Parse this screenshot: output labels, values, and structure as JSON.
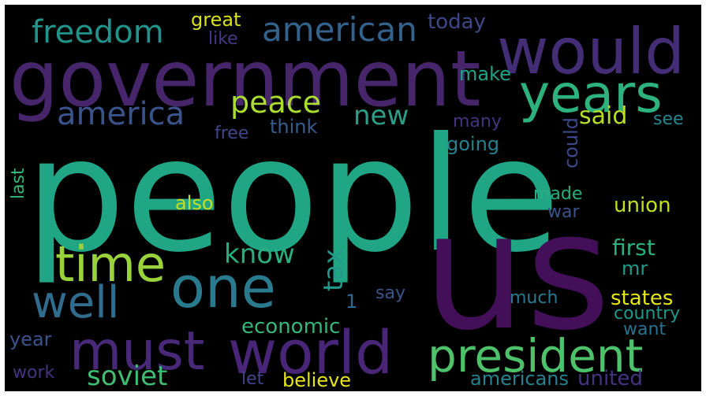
{
  "words": [
    {
      "text": "people",
      "color": "#21a685"
    },
    {
      "text": "us",
      "color": "#440f59"
    },
    {
      "text": "government",
      "color": "#46256b"
    },
    {
      "text": "would",
      "color": "#432d74"
    },
    {
      "text": "years",
      "color": "#2db27d"
    },
    {
      "text": "president",
      "color": "#4ec16b"
    },
    {
      "text": "world",
      "color": "#482576"
    },
    {
      "text": "one",
      "color": "#2a7a8e"
    },
    {
      "text": "must",
      "color": "#482978"
    },
    {
      "text": "time",
      "color": "#99d23d"
    },
    {
      "text": "well",
      "color": "#2f6c8e"
    },
    {
      "text": "american",
      "color": "#33628d"
    },
    {
      "text": "freedom",
      "color": "#22938a"
    },
    {
      "text": "america",
      "color": "#3a538b"
    },
    {
      "text": "peace",
      "color": "#aadc32"
    },
    {
      "text": "new",
      "color": "#2c9e86"
    },
    {
      "text": "soviet",
      "color": "#40bd72"
    },
    {
      "text": "know",
      "color": "#28ae80"
    },
    {
      "text": "tax",
      "color": "#23998a"
    },
    {
      "text": "said",
      "color": "#b5de2b"
    },
    {
      "text": "first",
      "color": "#2ab07f"
    },
    {
      "text": "union",
      "color": "#c2df23"
    },
    {
      "text": "states",
      "color": "#e4e51a"
    },
    {
      "text": "economic",
      "color": "#35b779"
    },
    {
      "text": "great",
      "color": "#d8e219"
    },
    {
      "text": "today",
      "color": "#3f4788"
    },
    {
      "text": "like",
      "color": "#443983"
    },
    {
      "text": "make",
      "color": "#20a386"
    },
    {
      "text": "think",
      "color": "#365c8d"
    },
    {
      "text": "free",
      "color": "#404688"
    },
    {
      "text": "going",
      "color": "#27808e"
    },
    {
      "text": "could",
      "color": "#3e4989"
    },
    {
      "text": "many",
      "color": "#45337d"
    },
    {
      "text": "see",
      "color": "#24868e"
    },
    {
      "text": "last",
      "color": "#35b779"
    },
    {
      "text": "also",
      "color": "#c2df23"
    },
    {
      "text": "made",
      "color": "#28ae80"
    },
    {
      "text": "war",
      "color": "#3b528b"
    },
    {
      "text": "mr",
      "color": "#1f9a8a"
    },
    {
      "text": "1",
      "color": "#31688e"
    },
    {
      "text": "say",
      "color": "#3b528b"
    },
    {
      "text": "much",
      "color": "#2a788e"
    },
    {
      "text": "country",
      "color": "#1f988b"
    },
    {
      "text": "want",
      "color": "#2c728e"
    },
    {
      "text": "year",
      "color": "#3b528b"
    },
    {
      "text": "work",
      "color": "#45337d"
    },
    {
      "text": "let",
      "color": "#404688"
    },
    {
      "text": "believe",
      "color": "#e4e51a"
    },
    {
      "text": "americans",
      "color": "#26828e"
    },
    {
      "text": "united",
      "color": "#46337f"
    }
  ]
}
